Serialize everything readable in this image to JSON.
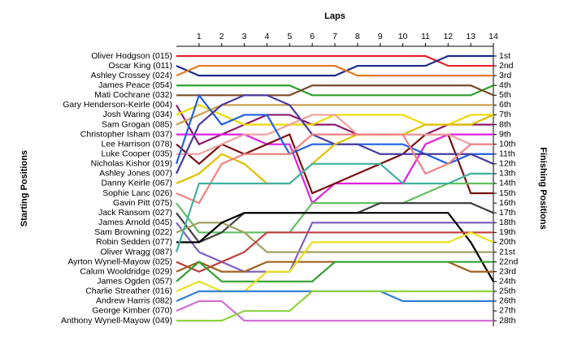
{
  "chart_data": {
    "type": "line",
    "title": "Laps",
    "y_label": "Starting Positions",
    "y2_label": "Finishing Positions",
    "x": [
      0,
      1,
      2,
      3,
      4,
      5,
      6,
      7,
      8,
      9,
      10,
      11,
      12,
      13,
      14
    ],
    "xlim": [
      0,
      14
    ],
    "xticks": [
      1,
      2,
      3,
      4,
      5,
      6,
      7,
      8,
      9,
      10,
      11,
      12,
      13,
      14
    ],
    "ylim": [
      1,
      28
    ],
    "yticks": [
      {
        "value": 1,
        "label": "1st"
      },
      {
        "value": 2,
        "label": "2nd"
      },
      {
        "value": 3,
        "label": "3rd"
      },
      {
        "value": 4,
        "label": "4th"
      },
      {
        "value": 5,
        "label": "5th"
      },
      {
        "value": 6,
        "label": "6th"
      },
      {
        "value": 7,
        "label": "7th"
      },
      {
        "value": 8,
        "label": "8th"
      },
      {
        "value": 9,
        "label": "9th"
      },
      {
        "value": 10,
        "label": "10th"
      },
      {
        "value": 11,
        "label": "11th"
      },
      {
        "value": 12,
        "label": "12th"
      },
      {
        "value": 13,
        "label": "13th"
      },
      {
        "value": 14,
        "label": "14th"
      },
      {
        "value": 15,
        "label": "15th"
      },
      {
        "value": 16,
        "label": "16th"
      },
      {
        "value": 17,
        "label": "17th"
      },
      {
        "value": 18,
        "label": "18th"
      },
      {
        "value": 19,
        "label": "19th"
      },
      {
        "value": 20,
        "label": "20th"
      },
      {
        "value": 21,
        "label": "21st"
      },
      {
        "value": 22,
        "label": "22nd"
      },
      {
        "value": 23,
        "label": "23rd"
      },
      {
        "value": 24,
        "label": "24th"
      },
      {
        "value": 25,
        "label": "25th"
      },
      {
        "value": 26,
        "label": "26th"
      },
      {
        "value": 27,
        "label": "27th"
      },
      {
        "value": 28,
        "label": "28th"
      }
    ],
    "series": [
      {
        "name": "Oliver Hodgson (015)",
        "color": "#e8202a",
        "values": [
          1,
          1,
          1,
          1,
          1,
          1,
          1,
          1,
          1,
          1,
          1,
          1,
          2,
          2,
          2
        ]
      },
      {
        "name": "Oscar King (011)",
        "color": "#1c2a8c",
        "values": [
          2,
          3,
          3,
          3,
          3,
          3,
          3,
          3,
          2,
          2,
          2,
          2,
          1,
          1,
          1
        ]
      },
      {
        "name": "Ashley Crossey (024)",
        "color": "#e07b20",
        "values": [
          3,
          2,
          2,
          2,
          2,
          2,
          2,
          2,
          3,
          3,
          3,
          3,
          3,
          3,
          3
        ]
      },
      {
        "name": "James Peace (054)",
        "color": "#2ca02c",
        "values": [
          4,
          4,
          4,
          4,
          4,
          4,
          5,
          5,
          5,
          5,
          5,
          5,
          5,
          5,
          4
        ]
      },
      {
        "name": "Mati Cochrane (032)",
        "color": "#7a4a2a",
        "values": [
          5,
          5,
          5,
          5,
          5,
          5,
          4,
          4,
          4,
          4,
          4,
          4,
          4,
          4,
          5
        ]
      },
      {
        "name": "Gary Henderson-Keirle (004)",
        "color": "#8b1a6b",
        "values": [
          6,
          10,
          9,
          8,
          7,
          7,
          8,
          8,
          9,
          9,
          9,
          9,
          8,
          8,
          8
        ]
      },
      {
        "name": "Josh Waring (034)",
        "color": "#f0d800",
        "values": [
          7,
          6,
          7,
          8,
          8,
          8,
          8,
          7,
          7,
          7,
          7,
          8,
          8,
          7,
          7
        ]
      },
      {
        "name": "Sam Grogan (085)",
        "color": "#c8a050",
        "values": [
          8,
          7,
          6,
          6,
          6,
          6,
          6,
          6,
          6,
          6,
          6,
          6,
          6,
          6,
          6
        ]
      },
      {
        "name": "Christopher Isham (037)",
        "color": "#e020e0",
        "values": [
          9,
          9,
          9,
          9,
          10,
          10,
          16,
          14,
          14,
          14,
          14,
          10,
          9,
          9,
          9
        ]
      },
      {
        "name": "Lee Harrison (078)",
        "color": "#7a1010",
        "values": [
          10,
          12,
          10,
          11,
          10,
          9,
          15,
          14,
          13,
          12,
          11,
          9,
          9,
          15,
          15
        ]
      },
      {
        "name": "Luke Cooper (035)",
        "color": "#f0a0a0",
        "values": [
          11,
          11,
          10,
          9,
          9,
          8,
          7,
          7,
          9,
          9,
          9,
          9,
          9,
          10,
          10
        ]
      },
      {
        "name": "Nicholas Kishor (019)",
        "color": "#2060e0",
        "values": [
          12,
          5,
          8,
          7,
          7,
          11,
          10,
          10,
          10,
          10,
          10,
          11,
          12,
          11,
          11
        ]
      },
      {
        "name": "Ashley Jones (007)",
        "color": "#4a3aa0",
        "values": [
          13,
          8,
          6,
          5,
          5,
          6,
          9,
          10,
          10,
          11,
          11,
          11,
          11,
          11,
          12
        ]
      },
      {
        "name": "Danny Keirle (067)",
        "color": "#e0c000",
        "values": [
          14,
          13,
          11,
          12,
          14,
          14,
          12,
          10,
          9,
          9,
          9,
          8,
          8,
          8,
          7
        ]
      },
      {
        "name": "Sophie Lanc (026)",
        "color": "#f08080",
        "values": [
          15,
          16,
          12,
          11,
          11,
          11,
          9,
          9,
          9,
          9,
          9,
          13,
          12,
          10,
          10
        ]
      },
      {
        "name": "Gavin Pitt (075)",
        "color": "#60c060",
        "values": [
          16,
          19,
          19,
          19,
          19,
          19,
          16,
          16,
          16,
          16,
          16,
          15,
          14,
          14,
          14
        ]
      },
      {
        "name": "Jack Ransom (027)",
        "color": "#404040",
        "values": [
          17,
          20,
          19,
          17,
          17,
          17,
          17,
          17,
          17,
          16,
          16,
          16,
          16,
          16,
          17
        ]
      },
      {
        "name": "James Arnold (045)",
        "color": "#8060c0",
        "values": [
          18,
          21,
          22,
          23,
          23,
          23,
          18,
          18,
          18,
          18,
          18,
          18,
          18,
          18,
          18
        ]
      },
      {
        "name": "Sam Browning (022)",
        "color": "#a0a060",
        "values": [
          19,
          18,
          18,
          19,
          21,
          21,
          21,
          21,
          21,
          21,
          21,
          21,
          21,
          21,
          21
        ]
      },
      {
        "name": "Robin Sedden (077)",
        "color": "#000000",
        "values": [
          20,
          20,
          18,
          17,
          17,
          17,
          17,
          17,
          17,
          17,
          17,
          17,
          17,
          20,
          24
        ]
      },
      {
        "name": "Oliver Wragg (087)",
        "color": "#40b0a0",
        "values": [
          21,
          14,
          14,
          14,
          14,
          14,
          12,
          12,
          12,
          12,
          14,
          14,
          14,
          13,
          13
        ]
      },
      {
        "name": "Ayrton Wynell-Mayow (025)",
        "color": "#c04040",
        "values": [
          22,
          23,
          22,
          21,
          19,
          19,
          19,
          19,
          19,
          19,
          19,
          19,
          19,
          19,
          19
        ]
      },
      {
        "name": "Calum Wooldridge (029)",
        "color": "#a06020",
        "values": [
          23,
          22,
          23,
          23,
          22,
          22,
          22,
          22,
          22,
          22,
          22,
          22,
          22,
          23,
          23
        ]
      },
      {
        "name": "James Ogden (057)",
        "color": "#30a030",
        "values": [
          24,
          22,
          24,
          24,
          24,
          24,
          24,
          22,
          22,
          22,
          22,
          22,
          22,
          22,
          22
        ]
      },
      {
        "name": "Charlie Streather (016)",
        "color": "#e8e020",
        "values": [
          25,
          24,
          25,
          25,
          23,
          23,
          20,
          20,
          20,
          20,
          20,
          20,
          20,
          19,
          20
        ]
      },
      {
        "name": "Andrew Harris (082)",
        "color": "#3080d0",
        "values": [
          26,
          25,
          25,
          25,
          25,
          25,
          25,
          25,
          25,
          25,
          26,
          26,
          26,
          26,
          26
        ]
      },
      {
        "name": "George Kimber (070)",
        "color": "#d070d0",
        "values": [
          27,
          26,
          26,
          28,
          28,
          28,
          28,
          28,
          28,
          28,
          28,
          28,
          28,
          28,
          28
        ]
      },
      {
        "name": "Anthony Wynell-Mayow (049)",
        "color": "#90d040",
        "values": [
          28,
          28,
          28,
          27,
          27,
          27,
          25,
          25,
          25,
          25,
          25,
          25,
          25,
          25,
          25
        ]
      }
    ]
  }
}
